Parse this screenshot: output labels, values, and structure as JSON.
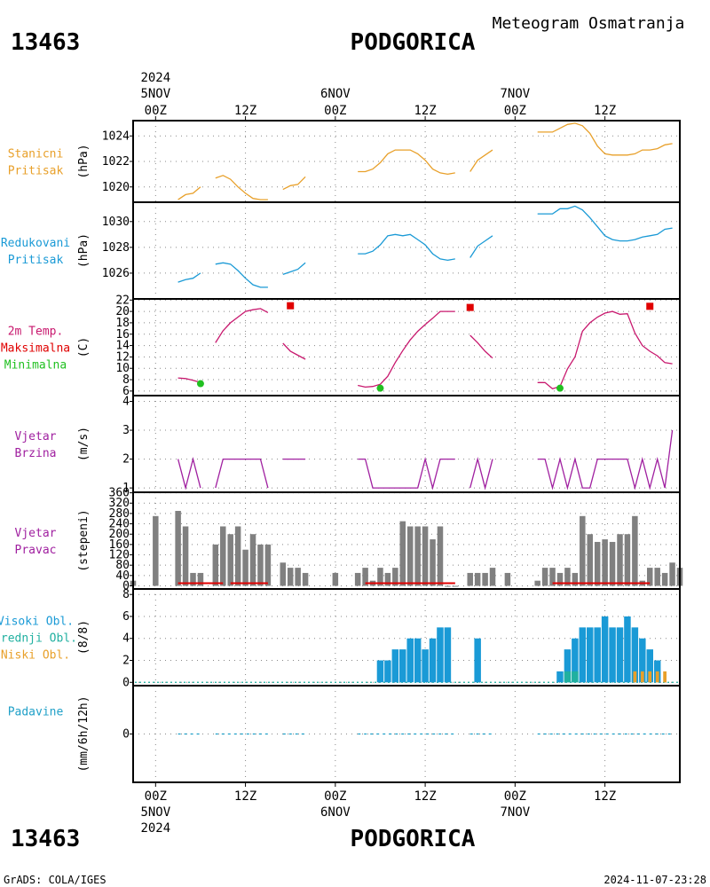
{
  "header": {
    "station_id": "13463",
    "station_name": "PODGORICA",
    "subtitle": "Meteogram Osmatranja"
  },
  "footer": {
    "station_id": "13463",
    "station_name": "PODGORICA",
    "credit": "GrADS: COLA/IGES",
    "timestamp": "2024-11-07-23:28"
  },
  "time_axis": {
    "year": "2024",
    "ticks": [
      {
        "hour": 0,
        "label": "00Z",
        "date": "5NOV",
        "year": "2024"
      },
      {
        "hour": 12,
        "label": "12Z"
      },
      {
        "hour": 24,
        "label": "00Z",
        "date": "6NOV"
      },
      {
        "hour": 36,
        "label": "12Z"
      },
      {
        "hour": 48,
        "label": "00Z",
        "date": "7NOV"
      },
      {
        "hour": 60,
        "label": "12Z"
      }
    ],
    "range_hours": [
      -3,
      70
    ]
  },
  "colors": {
    "pressure_station": "#e8a02a",
    "pressure_reduced": "#1a9ad6",
    "temperature": "#c8186e",
    "tmax": "#e00000",
    "tmin": "#20c020",
    "wind": "#a020a0",
    "bars": "#808080",
    "dir_red": "#e00000",
    "cloud_high": "#1a9ad6",
    "cloud_mid": "#20b0a0",
    "cloud_low": "#e8a02a",
    "precip": "#20a0c8"
  },
  "chart_data": [
    {
      "type": "line",
      "panel": "stanicni_pritisak",
      "label_lines": [
        "Stanicni",
        "Pritisak"
      ],
      "ylabel": "(hPa)",
      "ylim": [
        1018.8,
        1025.2
      ],
      "yticks": [
        1020,
        1022,
        1024
      ],
      "segments": [
        {
          "x": [
            3,
            4,
            5,
            6
          ],
          "y": [
            1019.0,
            1019.4,
            1019.5,
            1020.0
          ]
        },
        {
          "x": [
            8,
            9,
            10,
            11,
            12,
            13,
            14,
            15
          ],
          "y": [
            1020.7,
            1020.9,
            1020.6,
            1020.0,
            1019.5,
            1019.1,
            1019.0,
            1019.0
          ]
        },
        {
          "x": [
            17,
            18,
            19,
            20
          ],
          "y": [
            1019.8,
            1020.1,
            1020.2,
            1020.8
          ]
        },
        {
          "x": [
            27,
            28,
            29,
            30,
            31,
            32,
            33,
            34,
            35,
            36,
            37,
            38,
            39,
            40
          ],
          "y": [
            1021.2,
            1021.2,
            1021.4,
            1021.9,
            1022.6,
            1022.9,
            1022.9,
            1022.9,
            1022.6,
            1022.1,
            1021.4,
            1021.1,
            1021.0,
            1021.1
          ]
        },
        {
          "x": [
            42,
            43,
            44,
            45
          ],
          "y": [
            1021.2,
            1022.1,
            1022.5,
            1022.9
          ]
        },
        {
          "x": [
            51,
            52,
            53,
            54,
            55,
            56,
            57,
            58,
            59,
            60,
            61,
            62,
            63,
            64,
            65,
            66,
            67,
            68,
            69
          ],
          "y": [
            1024.3,
            1024.3,
            1024.3,
            1024.6,
            1024.9,
            1025.0,
            1024.8,
            1024.2,
            1023.2,
            1022.6,
            1022.5,
            1022.5,
            1022.5,
            1022.6,
            1022.9,
            1022.9,
            1023.0,
            1023.3,
            1023.4
          ]
        }
      ]
    },
    {
      "type": "line",
      "panel": "redukovani_pritisak",
      "label_lines": [
        "Redukovani",
        "Pritisak"
      ],
      "ylabel": "(hPa)",
      "ylim": [
        1024.0,
        1031.5
      ],
      "yticks": [
        1026,
        1028,
        1030
      ],
      "segments": [
        {
          "x": [
            3,
            4,
            5,
            6
          ],
          "y": [
            1025.3,
            1025.5,
            1025.6,
            1026.0
          ]
        },
        {
          "x": [
            8,
            9,
            10,
            11,
            12,
            13,
            14,
            15
          ],
          "y": [
            1026.7,
            1026.8,
            1026.7,
            1026.2,
            1025.6,
            1025.1,
            1024.9,
            1024.9
          ]
        },
        {
          "x": [
            17,
            18,
            19,
            20
          ],
          "y": [
            1025.9,
            1026.1,
            1026.3,
            1026.8
          ]
        },
        {
          "x": [
            27,
            28,
            29,
            30,
            31,
            32,
            33,
            34,
            35,
            36,
            37,
            38,
            39,
            40
          ],
          "y": [
            1027.5,
            1027.5,
            1027.7,
            1028.2,
            1028.9,
            1029.0,
            1028.9,
            1029.0,
            1028.6,
            1028.2,
            1027.5,
            1027.1,
            1027.0,
            1027.1
          ]
        },
        {
          "x": [
            42,
            43,
            44,
            45
          ],
          "y": [
            1027.2,
            1028.1,
            1028.5,
            1028.9
          ]
        },
        {
          "x": [
            51,
            52,
            53,
            54,
            55,
            56,
            57,
            58,
            59,
            60,
            61,
            62,
            63,
            64,
            65,
            66,
            67,
            68,
            69
          ],
          "y": [
            1030.6,
            1030.6,
            1030.6,
            1031.0,
            1031.0,
            1031.2,
            1030.9,
            1030.3,
            1029.6,
            1028.9,
            1028.6,
            1028.5,
            1028.5,
            1028.6,
            1028.8,
            1028.9,
            1029.0,
            1029.4,
            1029.5
          ]
        }
      ]
    },
    {
      "type": "line",
      "panel": "temperatura",
      "label_lines": [
        "2m Temp.",
        "Maksimalna",
        "Minimalna"
      ],
      "ylabel": "(C)",
      "ylim": [
        5.2,
        22.2
      ],
      "yticks": [
        6,
        8,
        10,
        12,
        14,
        16,
        18,
        20,
        22
      ],
      "segments": [
        {
          "x": [
            3,
            4,
            5,
            6
          ],
          "y": [
            8.3,
            8.2,
            7.9,
            7.5
          ]
        },
        {
          "x": [
            8,
            9,
            10,
            11,
            12,
            13,
            14,
            15
          ],
          "y": [
            14.5,
            16.6,
            18.0,
            19.0,
            20.0,
            20.3,
            20.5,
            19.8
          ]
        },
        {
          "x": [
            17,
            18,
            19,
            20
          ],
          "y": [
            14.4,
            13.0,
            12.3,
            11.6
          ]
        },
        {
          "x": [
            27,
            28,
            29,
            30,
            31,
            32,
            33,
            34,
            35,
            36,
            37,
            38,
            39,
            40
          ],
          "y": [
            7.0,
            6.7,
            6.8,
            7.2,
            8.6,
            11.0,
            13.1,
            15.0,
            16.5,
            17.7,
            18.8,
            20.0,
            20.0,
            20.0
          ]
        },
        {
          "x": [
            42,
            43,
            44,
            45
          ],
          "y": [
            15.8,
            14.5,
            13.0,
            11.8
          ]
        },
        {
          "x": [
            51,
            52,
            53,
            54,
            55,
            56,
            57,
            58,
            59,
            60,
            61,
            62,
            63,
            64,
            65,
            66,
            67,
            68,
            69
          ],
          "y": [
            7.5,
            7.5,
            6.4,
            6.8,
            9.9,
            12.0,
            16.5,
            18.0,
            19.0,
            19.7,
            20.0,
            19.5,
            19.6,
            16.2,
            14.0,
            13.0,
            12.2,
            11.0,
            10.8
          ]
        }
      ],
      "tmax_points": {
        "x": [
          18,
          42,
          66
        ],
        "y": [
          21.0,
          20.7,
          20.9
        ]
      },
      "tmin_points": {
        "x": [
          6,
          30,
          54
        ],
        "y": [
          7.3,
          6.5,
          6.5
        ]
      }
    },
    {
      "type": "line",
      "panel": "vjetar_brzina",
      "label_lines": [
        "Vjetar",
        "Brzina"
      ],
      "ylabel": "(m/s)",
      "ylim": [
        0.85,
        4.2
      ],
      "yticks": [
        1,
        2,
        3,
        4
      ],
      "segments": [
        {
          "x": [
            3,
            4,
            5,
            6
          ],
          "y": [
            2,
            1,
            2,
            1
          ]
        },
        {
          "x": [
            8,
            9,
            10,
            11,
            12,
            13,
            14,
            15
          ],
          "y": [
            1,
            2,
            2,
            2,
            2,
            2,
            2,
            1
          ]
        },
        {
          "x": [
            17,
            18,
            19,
            20
          ],
          "y": [
            2,
            2,
            2,
            2
          ]
        },
        {
          "x": [
            27,
            28,
            29,
            30,
            31,
            32,
            33,
            34,
            35,
            36,
            37,
            38,
            39,
            40
          ],
          "y": [
            2,
            2,
            1,
            1,
            1,
            1,
            1,
            1,
            1,
            2,
            1,
            2,
            2,
            2
          ]
        },
        {
          "x": [
            42,
            43,
            44,
            45
          ],
          "y": [
            1,
            2,
            1,
            2
          ]
        },
        {
          "x": [
            51,
            52,
            53,
            54,
            55,
            56,
            57,
            58,
            59,
            60,
            61,
            62,
            63,
            64,
            65,
            66,
            67,
            68,
            69
          ],
          "y": [
            2,
            2,
            1,
            2,
            1,
            2,
            1,
            1,
            2,
            2,
            2,
            2,
            2,
            1,
            2,
            1,
            2,
            1,
            3
          ]
        }
      ]
    },
    {
      "type": "bar",
      "panel": "vjetar_pravac",
      "label_lines": [
        "Vjetar",
        "Pravac"
      ],
      "ylabel": "(stepeni)",
      "ylim": [
        -12,
        362
      ],
      "yticks": [
        0,
        40,
        80,
        120,
        160,
        200,
        240,
        280,
        320,
        360
      ],
      "x": [
        -3,
        0,
        3,
        4,
        5,
        6,
        8,
        9,
        10,
        11,
        12,
        13,
        14,
        15,
        17,
        18,
        19,
        20,
        24,
        27,
        28,
        29,
        30,
        31,
        32,
        33,
        34,
        35,
        36,
        37,
        38,
        39,
        40,
        42,
        43,
        44,
        45,
        47,
        51,
        52,
        53,
        54,
        55,
        56,
        57,
        58,
        59,
        60,
        61,
        62,
        63,
        64,
        65,
        66,
        67,
        68,
        69,
        70
      ],
      "values": [
        20,
        270,
        290,
        230,
        50,
        50,
        160,
        230,
        200,
        230,
        140,
        200,
        160,
        160,
        90,
        70,
        70,
        50,
        50,
        50,
        70,
        20,
        70,
        50,
        70,
        250,
        230,
        230,
        230,
        180,
        230,
        0,
        0,
        50,
        50,
        50,
        70,
        50,
        20,
        70,
        70,
        50,
        70,
        50,
        270,
        200,
        170,
        180,
        170,
        200,
        200,
        270,
        20,
        70,
        70,
        50,
        90,
        70
      ],
      "red_ranges": [
        [
          3,
          9
        ],
        [
          10,
          15
        ],
        [
          28,
          40
        ],
        [
          53,
          66
        ]
      ]
    },
    {
      "type": "bar",
      "panel": "oblacnost",
      "label_lines": [
        "Visoki Obl.",
        "Srednji Obl.",
        "Niski Obl."
      ],
      "ylabel": "(8/8)",
      "ylim": [
        -0.3,
        8.5
      ],
      "yticks": [
        0,
        2,
        4,
        6,
        8
      ],
      "x": [
        30,
        31,
        32,
        33,
        34,
        35,
        36,
        37,
        38,
        39,
        40,
        43,
        54,
        55,
        56,
        57,
        58,
        59,
        60,
        61,
        62,
        63,
        64,
        65,
        66,
        67
      ],
      "values": [
        2,
        2,
        3,
        3,
        4,
        4,
        3,
        4,
        5,
        5,
        0,
        4,
        1,
        3,
        4,
        5,
        5,
        5,
        6,
        5,
        5,
        6,
        5,
        4,
        3,
        2
      ],
      "low_cloud": {
        "x": [
          64,
          65,
          66,
          67,
          68
        ],
        "values": [
          1,
          1,
          1,
          1,
          1
        ]
      },
      "mid_cloud": {
        "x": [
          55,
          56
        ],
        "values": [
          1,
          1
        ]
      }
    },
    {
      "type": "line",
      "panel": "padavine",
      "label_lines": [
        "Padavine"
      ],
      "ylabel": "(mm/6h/12h)",
      "ylim": [
        -5,
        5
      ],
      "yticks": [
        0
      ],
      "segments": [
        {
          "x": [
            3,
            6
          ],
          "y": [
            0,
            0
          ]
        },
        {
          "x": [
            8,
            15
          ],
          "y": [
            0,
            0
          ]
        },
        {
          "x": [
            17,
            20
          ],
          "y": [
            0,
            0
          ]
        },
        {
          "x": [
            27,
            40
          ],
          "y": [
            0,
            0
          ]
        },
        {
          "x": [
            42,
            45
          ],
          "y": [
            0,
            0
          ]
        },
        {
          "x": [
            51,
            69
          ],
          "y": [
            0,
            0
          ]
        }
      ]
    }
  ]
}
